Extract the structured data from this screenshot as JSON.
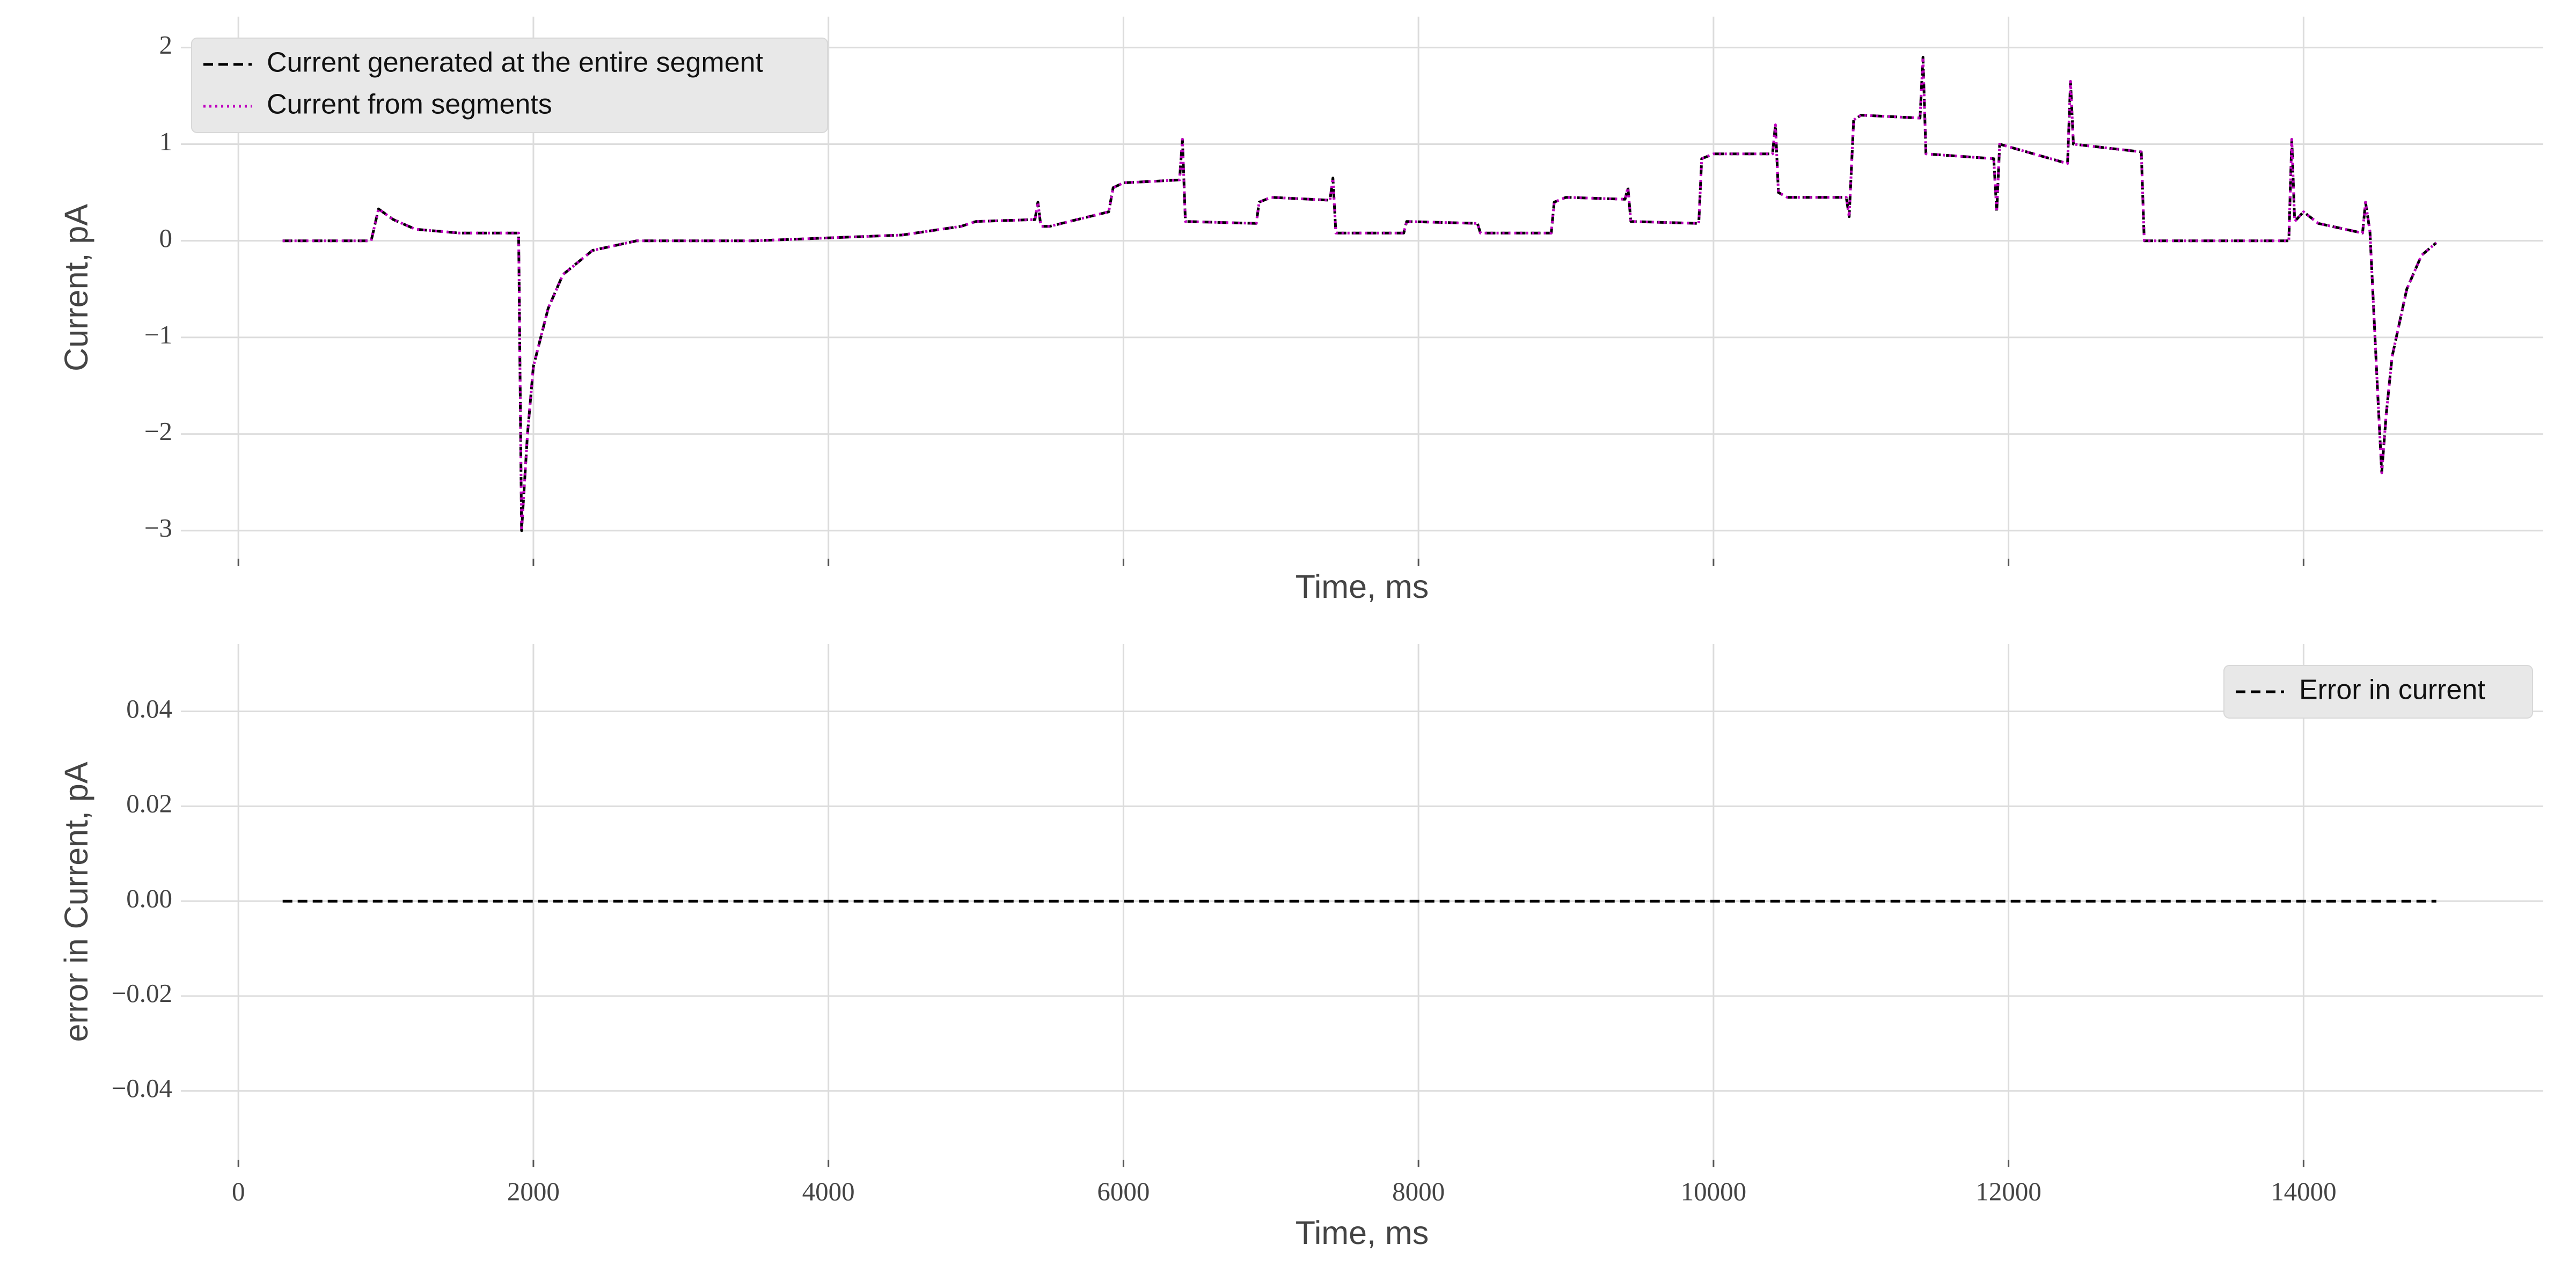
{
  "chart_data": [
    {
      "type": "line",
      "xlabel": "Time, ms",
      "ylabel": "Current, pA",
      "x": [
        300,
        900,
        950,
        1050,
        1200,
        1500,
        1900,
        1920,
        1960,
        2000,
        2100,
        2200,
        2400,
        2700,
        3500,
        4000,
        4500,
        4900,
        5000,
        5400,
        5420,
        5440,
        5500,
        5900,
        5930,
        6000,
        6380,
        6400,
        6420,
        6900,
        6920,
        7000,
        7400,
        7420,
        7440,
        7900,
        7920,
        8400,
        8420,
        8900,
        8920,
        9000,
        9400,
        9420,
        9440,
        9900,
        9920,
        10000,
        10400,
        10420,
        10440,
        10500,
        10900,
        10920,
        10950,
        11000,
        11400,
        11420,
        11440,
        11900,
        11920,
        11940,
        12400,
        12420,
        12440,
        12900,
        12920,
        13900,
        13920,
        13940,
        14000,
        14100,
        14400,
        14420,
        14450,
        14500,
        14530,
        14560,
        14600,
        14700,
        14800,
        14900
      ],
      "series": [
        {
          "name": "Current generated at the entire segment",
          "color": "#000000",
          "style": "dashed",
          "values": [
            0.0,
            0.0,
            0.33,
            0.22,
            0.12,
            0.08,
            0.08,
            -3.0,
            -2.0,
            -1.3,
            -0.7,
            -0.35,
            -0.1,
            0.0,
            0.0,
            0.03,
            0.06,
            0.15,
            0.2,
            0.22,
            0.4,
            0.15,
            0.15,
            0.3,
            0.55,
            0.6,
            0.63,
            1.05,
            0.2,
            0.18,
            0.4,
            0.45,
            0.42,
            0.65,
            0.08,
            0.08,
            0.2,
            0.18,
            0.08,
            0.08,
            0.4,
            0.45,
            0.43,
            0.55,
            0.2,
            0.18,
            0.85,
            0.9,
            0.9,
            1.2,
            0.5,
            0.45,
            0.45,
            0.25,
            1.25,
            1.3,
            1.27,
            1.9,
            0.9,
            0.85,
            0.3,
            1.0,
            0.8,
            1.65,
            1.0,
            0.92,
            0.0,
            0.0,
            1.05,
            0.2,
            0.3,
            0.18,
            0.08,
            0.4,
            0.1,
            -1.5,
            -2.4,
            -1.8,
            -1.2,
            -0.5,
            -0.15,
            -0.02
          ]
        },
        {
          "name": "Current from segments",
          "color": "#bf00bf",
          "style": "dotted",
          "values": [
            0.0,
            0.0,
            0.33,
            0.22,
            0.12,
            0.08,
            0.08,
            -3.0,
            -2.0,
            -1.3,
            -0.7,
            -0.35,
            -0.1,
            0.0,
            0.0,
            0.03,
            0.06,
            0.15,
            0.2,
            0.22,
            0.4,
            0.15,
            0.15,
            0.3,
            0.55,
            0.6,
            0.63,
            1.05,
            0.2,
            0.18,
            0.4,
            0.45,
            0.42,
            0.65,
            0.08,
            0.08,
            0.2,
            0.18,
            0.08,
            0.08,
            0.4,
            0.45,
            0.43,
            0.55,
            0.2,
            0.18,
            0.85,
            0.9,
            0.9,
            1.2,
            0.5,
            0.45,
            0.45,
            0.25,
            1.25,
            1.3,
            1.27,
            1.9,
            0.9,
            0.85,
            0.3,
            1.0,
            0.8,
            1.65,
            1.0,
            0.92,
            0.0,
            0.0,
            1.05,
            0.2,
            0.3,
            0.18,
            0.08,
            0.4,
            0.1,
            -1.5,
            -2.4,
            -1.8,
            -1.2,
            -0.5,
            -0.15,
            -0.02
          ]
        }
      ],
      "xlim": [
        -390,
        15625
      ],
      "xticks": [
        0,
        2000,
        4000,
        6000,
        8000,
        10000,
        12000,
        14000
      ],
      "xticklabels": false,
      "ylim": [
        -3.29,
        2.32
      ],
      "yticks": [
        {
          "value": -3,
          "label": "−3"
        },
        {
          "value": -2,
          "label": "−2"
        },
        {
          "value": -1,
          "label": "−1"
        },
        0,
        1,
        2
      ],
      "grid": true,
      "legend": "upper left"
    },
    {
      "type": "line",
      "xlabel": "Time, ms",
      "ylabel": "error in Current, pA",
      "x": [
        300,
        14900
      ],
      "series": [
        {
          "name": "Error in current",
          "color": "#000000",
          "style": "dashed",
          "values": [
            0,
            0
          ]
        }
      ],
      "xlim": [
        -390,
        15625
      ],
      "xticks": [
        0,
        2000,
        4000,
        6000,
        8000,
        10000,
        12000,
        14000
      ],
      "xticklabels": true,
      "ylim": [
        -0.0545,
        0.0542
      ],
      "yticks": [
        {
          "value": -0.04,
          "label": "−0.04"
        },
        {
          "value": -0.02,
          "label": "−0.02"
        },
        {
          "value": 0,
          "label": "0.00"
        },
        0.02,
        0.04
      ],
      "grid": true,
      "legend": "upper right"
    }
  ]
}
